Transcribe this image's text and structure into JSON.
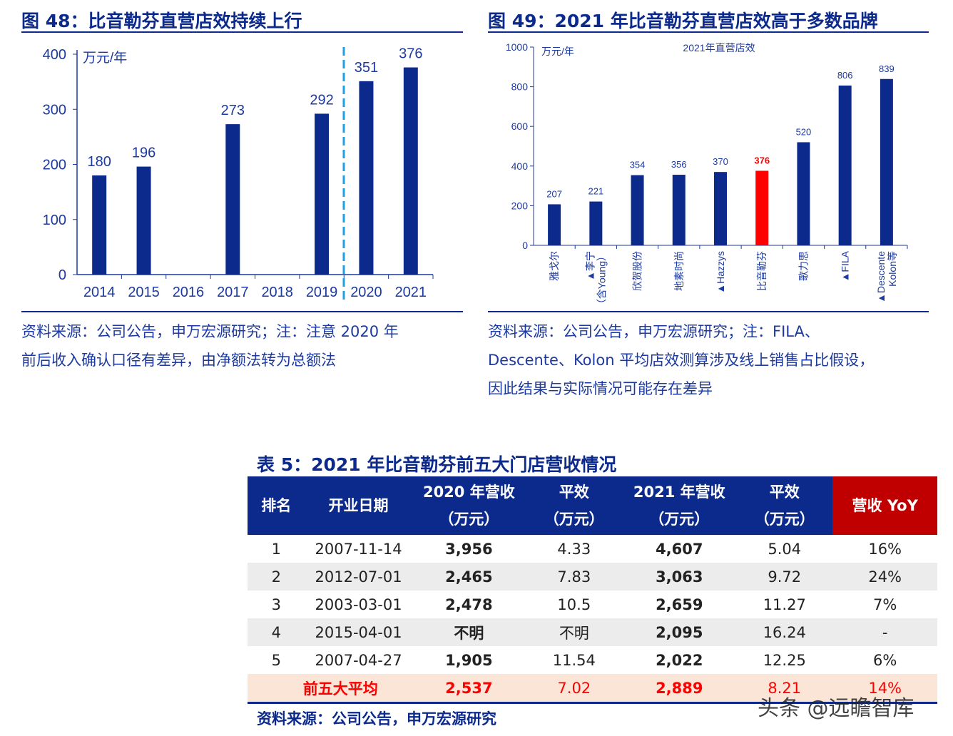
{
  "fig48": {
    "title": "图 48：比音勒芬直营店效持续上行",
    "unit": "万元/年",
    "note": [
      "资料来源：公司公告，申万宏源研究；注：注意 2020 年",
      "前后收入确认口径有差异，由净额法转为总额法"
    ]
  },
  "fig49": {
    "title": "图 49：2021 年比音勒芬直营店效高于多数品牌",
    "unit": "万元/年",
    "subtitle": "2021年直营店效",
    "note": [
      "资料来源：公司公告，申万宏源研究；注：FILA、",
      "Descente、Kolon 平均店效测算涉及线上销售占比假设，",
      "因此结果与实际情况可能存在差异"
    ]
  },
  "chart_data": [
    {
      "type": "bar",
      "title": "图 48：比音勒芬直营店效持续上行",
      "ylabel": "万元/年",
      "categories": [
        "2014",
        "2015",
        "2016",
        "2017",
        "2018",
        "2019",
        "2020",
        "2021"
      ],
      "values": [
        180,
        196,
        null,
        273,
        null,
        292,
        351,
        376
      ],
      "ylim": [
        0,
        400
      ],
      "yticks": [
        0,
        100,
        200,
        300,
        400
      ],
      "annotation": "dashed divider between 2019 and 2020",
      "color": "#0c2a8c"
    },
    {
      "type": "bar",
      "title": "2021年直营店效",
      "ylabel": "万元/年",
      "categories": [
        "雅戈尔",
        "▲李宁（含Young）",
        "欣贺股份",
        "地素时尚",
        "▲Hazzys",
        "比音勒芬",
        "歌力思",
        "▲FILA",
        "▲Descente Kolon等"
      ],
      "values": [
        207,
        221,
        354,
        356,
        370,
        376,
        520,
        806,
        839
      ],
      "highlight": "比音勒芬",
      "highlight_color": "#ff0000",
      "color": "#0c2a8c",
      "ylim": [
        0,
        1000
      ],
      "yticks": [
        0,
        200,
        400,
        600,
        800,
        1000
      ]
    }
  ],
  "table": {
    "title": "表 5：2021 年比音勒芬前五大门店营收情况",
    "headers": [
      [
        "排名"
      ],
      [
        "开业日期"
      ],
      [
        "2020 年营收",
        "（万元）"
      ],
      [
        "平效",
        "（万元）"
      ],
      [
        "2021 年营收",
        "（万元）"
      ],
      [
        "平效",
        "（万元）"
      ],
      [
        "营收 YoY"
      ]
    ],
    "rows": [
      [
        "1",
        "2007-11-14",
        "3,956",
        "4.33",
        "4,607",
        "5.04",
        "16%"
      ],
      [
        "2",
        "2012-07-01",
        "2,465",
        "7.83",
        "3,063",
        "9.72",
        "24%"
      ],
      [
        "3",
        "2003-03-01",
        "2,478",
        "10.5",
        "2,659",
        "11.27",
        "7%"
      ],
      [
        "4",
        "2015-04-01",
        "不明",
        "不明",
        "2,095",
        "16.24",
        "-"
      ],
      [
        "5",
        "2007-04-27",
        "1,905",
        "11.54",
        "2,022",
        "12.25",
        "6%"
      ]
    ],
    "avg": [
      "前五大平均",
      "2,537",
      "7.02",
      "2,889",
      "8.21",
      "14%"
    ],
    "source": "资料来源：公司公告，申万宏源研究"
  },
  "watermark": "头条 @远瞻智库"
}
